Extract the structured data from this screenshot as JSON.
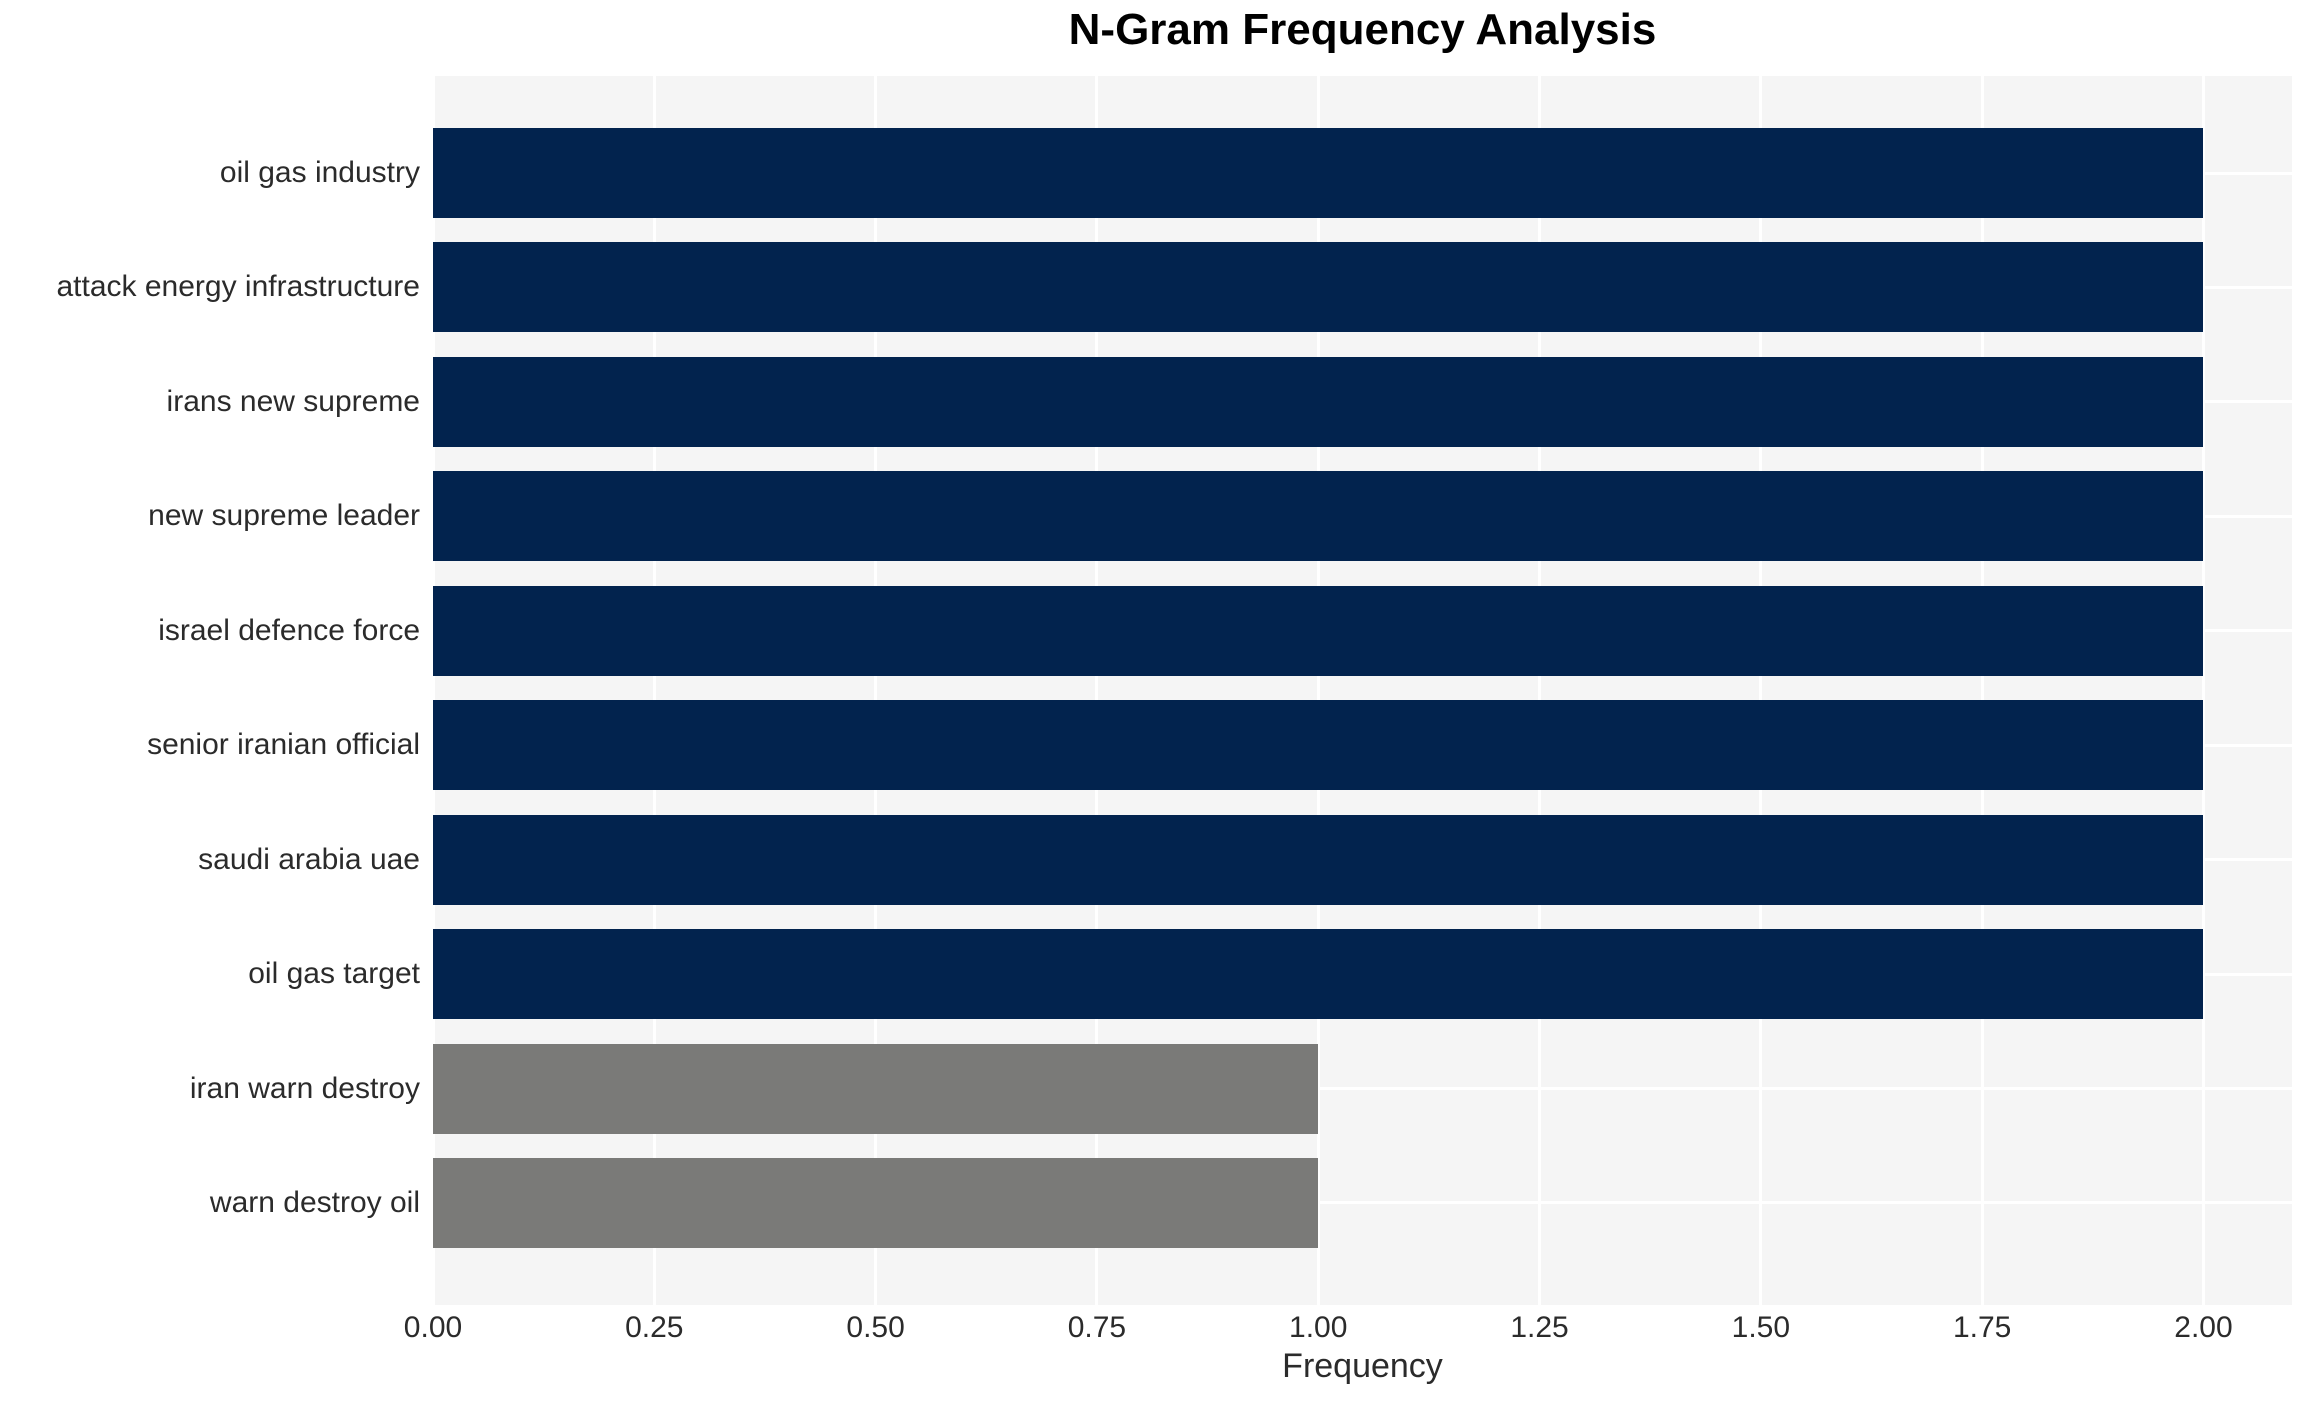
{
  "chart_data": {
    "type": "bar",
    "orientation": "horizontal",
    "title": "N-Gram Frequency Analysis",
    "xlabel": "Frequency",
    "ylabel": "",
    "categories": [
      "oil gas industry",
      "attack energy infrastructure",
      "irans new supreme",
      "new supreme leader",
      "israel defence force",
      "senior iranian official",
      "saudi arabia uae",
      "oil gas target",
      "iran warn destroy",
      "warn destroy oil"
    ],
    "values": [
      2,
      2,
      2,
      2,
      2,
      2,
      2,
      2,
      1,
      1
    ],
    "bar_colors": [
      "#02234e",
      "#02234e",
      "#02234e",
      "#02234e",
      "#02234e",
      "#02234e",
      "#02234e",
      "#02234e",
      "#7a7a78",
      "#7a7a78"
    ],
    "xlim": [
      0,
      2.1
    ],
    "xticks": [
      0,
      0.25,
      0.5,
      0.75,
      1.0,
      1.25,
      1.5,
      1.75,
      2.0
    ],
    "xtick_labels": [
      "0.00",
      "0.25",
      "0.50",
      "0.75",
      "1.00",
      "1.25",
      "1.50",
      "1.75",
      "2.00"
    ],
    "grid": true,
    "legend": "none",
    "plot_bg_color": "#f5f5f5",
    "grid_color": "#ffffff",
    "title_color": "#000000",
    "tick_label_color": "#2b2b2b"
  }
}
